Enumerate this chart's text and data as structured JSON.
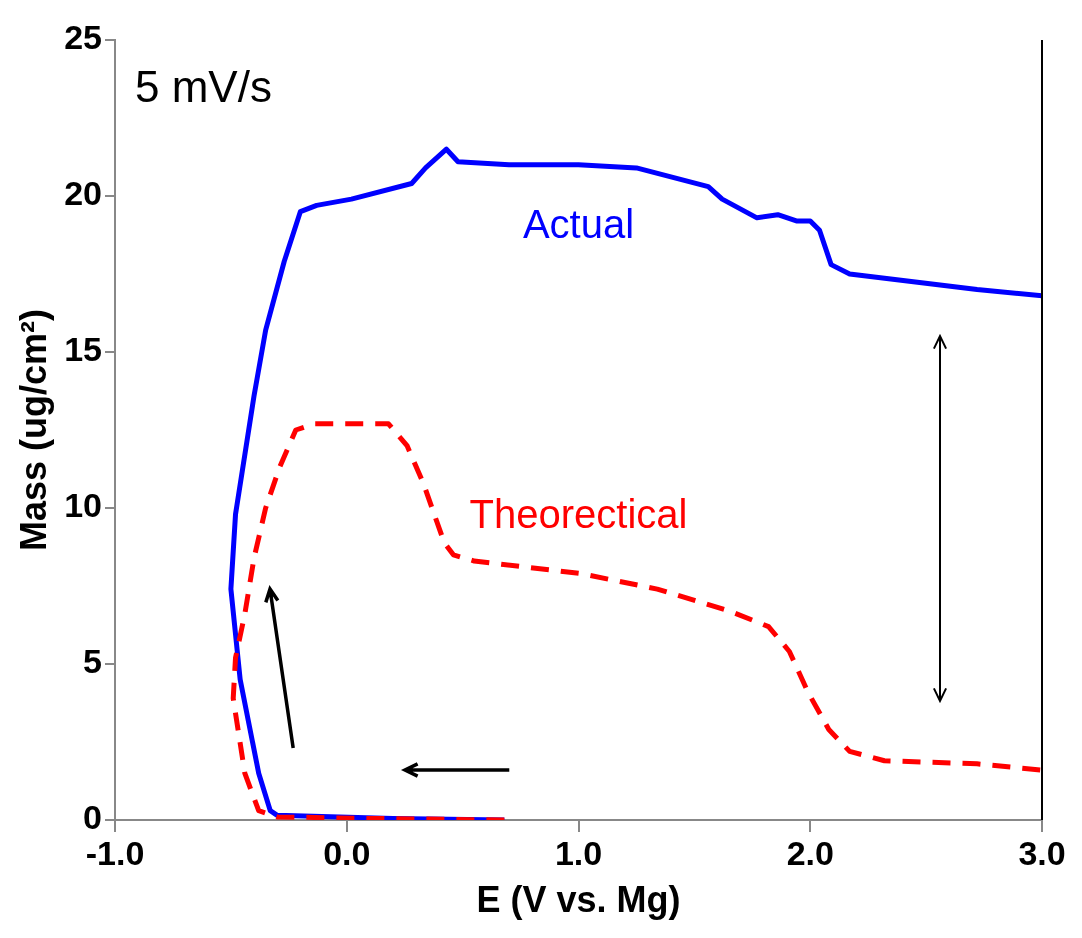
{
  "chart_data": {
    "type": "line",
    "xlabel": "E (V vs. Mg)",
    "ylabel": "Mass (ug/cm²)",
    "annotations": [
      "5 mV/s"
    ],
    "marker": "none",
    "grid": false,
    "legend": false,
    "xlim": [
      -1.0,
      3.0
    ],
    "xticks": [
      {
        "value": -1,
        "label": "-1.0"
      },
      {
        "value": 0,
        "label": "0.0"
      },
      {
        "value": 1,
        "label": "1.0"
      },
      {
        "value": 2,
        "label": "2.0"
      },
      {
        "value": 3,
        "label": "3.0"
      }
    ],
    "ylim": [
      0,
      25
    ],
    "yticks": [
      0,
      5,
      10,
      15,
      20,
      25
    ],
    "series": [
      {
        "name": "Actual",
        "color": "#0000ff",
        "line_style": "solid",
        "x": [
          0.68,
          0.2,
          -0.3,
          -0.33,
          -0.38,
          -0.46,
          -0.5,
          -0.48,
          -0.4,
          -0.35,
          -0.27,
          -0.2,
          -0.13,
          0.02,
          0.28,
          0.34,
          0.43,
          0.48,
          0.7,
          1.0,
          1.25,
          1.56,
          1.62,
          1.77,
          1.86,
          1.94,
          2.0,
          2.04,
          2.09,
          2.17,
          2.72,
          3.0
        ],
        "values": [
          0,
          0.05,
          0.15,
          0.3,
          1.5,
          4.5,
          7.4,
          9.8,
          13.6,
          15.7,
          17.9,
          19.5,
          19.7,
          19.9,
          20.4,
          20.9,
          21.5,
          21.1,
          21.0,
          21.0,
          20.9,
          20.3,
          19.9,
          19.3,
          19.4,
          19.2,
          19.2,
          18.9,
          17.8,
          17.5,
          17.0,
          16.8
        ]
      },
      {
        "name": "Theorectical",
        "color": "#ff0000",
        "line_style": "dashed",
        "x": [
          0.68,
          0.1,
          -0.3,
          -0.38,
          -0.44,
          -0.49,
          -0.48,
          -0.44,
          -0.4,
          -0.35,
          -0.29,
          -0.22,
          -0.14,
          0.18,
          0.26,
          0.33,
          0.42,
          0.46,
          0.55,
          1.01,
          1.34,
          1.65,
          1.82,
          1.91,
          1.99,
          2.08,
          2.17,
          2.32,
          2.72,
          3.0
        ],
        "values": [
          0,
          0.05,
          0.1,
          0.3,
          1.5,
          3.9,
          5.2,
          6.6,
          8.4,
          10.0,
          11.3,
          12.5,
          12.7,
          12.7,
          12.0,
          10.8,
          8.9,
          8.5,
          8.3,
          7.9,
          7.4,
          6.7,
          6.2,
          5.4,
          4.1,
          2.9,
          2.2,
          1.9,
          1.8,
          1.6
        ]
      }
    ]
  }
}
